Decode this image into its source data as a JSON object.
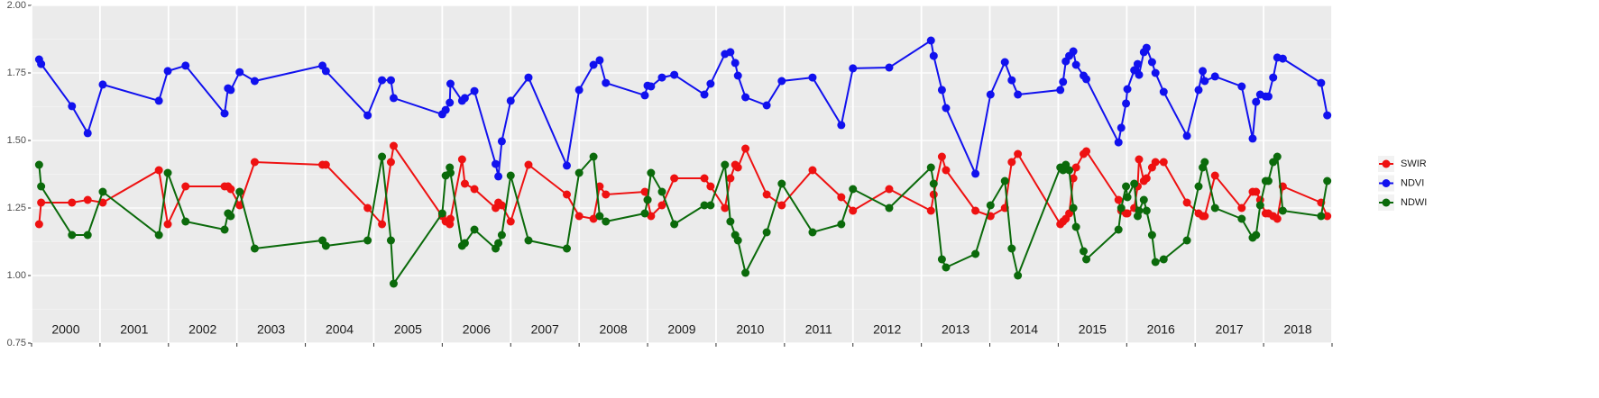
{
  "chart_data": {
    "type": "line",
    "x": [
      2000.11,
      2000.14,
      2000.59,
      2000.82,
      2001.04,
      2001.86,
      2001.99,
      2002.25,
      2002.82,
      2002.87,
      2002.91,
      2003.04,
      2003.26,
      2004.25,
      2004.3,
      2004.91,
      2005.12,
      2005.25,
      2005.29,
      2006.0,
      2006.05,
      2006.11,
      2006.12,
      2006.29,
      2006.33,
      2006.47,
      2006.78,
      2006.82,
      2006.87,
      2007.0,
      2007.26,
      2007.82,
      2008.0,
      2008.21,
      2008.3,
      2008.39,
      2008.96,
      2009.0,
      2009.05,
      2009.21,
      2009.39,
      2009.83,
      2009.92,
      2010.13,
      2010.21,
      2010.28,
      2010.32,
      2010.43,
      2010.74,
      2010.96,
      2011.41,
      2011.83,
      2012.0,
      2012.53,
      2013.14,
      2013.18,
      2013.3,
      2013.36,
      2013.79,
      2014.01,
      2014.22,
      2014.32,
      2014.41,
      2015.03,
      2015.07,
      2015.11,
      2015.16,
      2015.22,
      2015.26,
      2015.37,
      2015.41,
      2015.88,
      2015.92,
      2015.99,
      2016.01,
      2016.11,
      2016.16,
      2016.18,
      2016.25,
      2016.29,
      2016.37,
      2016.42,
      2016.54,
      2016.88,
      2017.05,
      2017.11,
      2017.14,
      2017.29,
      2017.68,
      2017.84,
      2017.89,
      2017.95,
      2018.03,
      2018.07,
      2018.14,
      2018.2,
      2018.28,
      2018.84,
      2018.93
    ],
    "series": [
      {
        "name": "SWIR",
        "color": "#ee1111",
        "values": [
          1.19,
          1.27,
          1.27,
          1.28,
          1.27,
          1.39,
          1.19,
          1.33,
          1.33,
          1.33,
          1.32,
          1.26,
          1.42,
          1.41,
          1.41,
          1.25,
          1.19,
          1.42,
          1.48,
          1.22,
          1.2,
          1.19,
          1.21,
          1.43,
          1.34,
          1.32,
          1.25,
          1.27,
          1.26,
          1.2,
          1.41,
          1.3,
          1.22,
          1.21,
          1.33,
          1.3,
          1.31,
          1.28,
          1.22,
          1.26,
          1.36,
          1.36,
          1.33,
          1.25,
          1.36,
          1.41,
          1.4,
          1.47,
          1.3,
          1.26,
          1.39,
          1.29,
          1.24,
          1.32,
          1.24,
          1.3,
          1.44,
          1.39,
          1.24,
          1.22,
          1.25,
          1.42,
          1.45,
          1.19,
          1.2,
          1.21,
          1.23,
          1.36,
          1.4,
          1.45,
          1.46,
          1.28,
          1.24,
          1.23,
          1.23,
          1.25,
          1.33,
          1.43,
          1.35,
          1.36,
          1.4,
          1.42,
          1.42,
          1.27,
          1.23,
          1.22,
          1.22,
          1.37,
          1.25,
          1.31,
          1.31,
          1.28,
          1.23,
          1.23,
          1.22,
          1.21,
          1.33,
          1.27,
          1.22
        ]
      },
      {
        "name": "NDVI",
        "color": "#1111ee",
        "values": [
          1.8,
          1.783,
          1.627,
          1.527,
          1.707,
          1.647,
          1.757,
          1.777,
          1.6,
          1.693,
          1.687,
          1.753,
          1.72,
          1.777,
          1.757,
          1.593,
          1.723,
          1.723,
          1.657,
          1.597,
          1.613,
          1.64,
          1.71,
          1.647,
          1.657,
          1.683,
          1.413,
          1.367,
          1.497,
          1.647,
          1.733,
          1.407,
          1.687,
          1.78,
          1.797,
          1.713,
          1.667,
          1.703,
          1.7,
          1.733,
          1.743,
          1.67,
          1.71,
          1.82,
          1.827,
          1.787,
          1.74,
          1.66,
          1.63,
          1.72,
          1.733,
          1.557,
          1.767,
          1.77,
          1.87,
          1.813,
          1.687,
          1.62,
          1.377,
          1.67,
          1.79,
          1.723,
          1.67,
          1.687,
          1.717,
          1.793,
          1.813,
          1.83,
          1.78,
          1.74,
          1.727,
          1.493,
          1.547,
          1.637,
          1.69,
          1.76,
          1.783,
          1.743,
          1.827,
          1.843,
          1.79,
          1.75,
          1.68,
          1.517,
          1.687,
          1.757,
          1.72,
          1.737,
          1.7,
          1.507,
          1.643,
          1.67,
          1.663,
          1.663,
          1.733,
          1.807,
          1.803,
          1.713,
          1.593
        ]
      },
      {
        "name": "NDWI",
        "color": "#0b6a0b",
        "values": [
          1.41,
          1.33,
          1.15,
          1.15,
          1.31,
          1.15,
          1.38,
          1.2,
          1.17,
          1.23,
          1.22,
          1.31,
          1.1,
          1.13,
          1.11,
          1.13,
          1.44,
          1.13,
          0.97,
          1.23,
          1.37,
          1.4,
          1.38,
          1.11,
          1.12,
          1.17,
          1.1,
          1.12,
          1.15,
          1.37,
          1.13,
          1.1,
          1.38,
          1.44,
          1.22,
          1.2,
          1.23,
          1.28,
          1.38,
          1.31,
          1.19,
          1.26,
          1.26,
          1.41,
          1.2,
          1.15,
          1.13,
          1.01,
          1.16,
          1.34,
          1.16,
          1.19,
          1.32,
          1.25,
          1.4,
          1.34,
          1.06,
          1.03,
          1.08,
          1.26,
          1.35,
          1.1,
          1.0,
          1.4,
          1.39,
          1.41,
          1.39,
          1.25,
          1.18,
          1.09,
          1.06,
          1.17,
          1.25,
          1.33,
          1.29,
          1.34,
          1.22,
          1.24,
          1.28,
          1.24,
          1.15,
          1.05,
          1.06,
          1.13,
          1.33,
          1.4,
          1.42,
          1.25,
          1.21,
          1.14,
          1.15,
          1.26,
          1.35,
          1.35,
          1.42,
          1.44,
          1.24,
          1.22,
          1.35
        ]
      }
    ],
    "year_labels": [
      "2000",
      "2001",
      "2002",
      "2003",
      "2004",
      "2005",
      "2006",
      "2007",
      "2008",
      "2009",
      "2010",
      "2011",
      "2012",
      "2013",
      "2014",
      "2015",
      "2016",
      "2017",
      "2018"
    ],
    "xlim": [
      2000,
      2019
    ],
    "xticks": [
      2000,
      2001,
      2002,
      2003,
      2004,
      2005,
      2006,
      2007,
      2008,
      2009,
      2010,
      2011,
      2012,
      2013,
      2014,
      2015,
      2016,
      2017,
      2018,
      2019
    ],
    "ylim": [
      0.75,
      2
    ],
    "yticks": [
      0.75,
      {
        "value": 1,
        "label": "1.00"
      },
      1.25,
      {
        "value": 1.5,
        "label": "1.50"
      },
      1.75,
      {
        "value": 2,
        "label": "2.00"
      }
    ],
    "grid": true,
    "legend": "right"
  }
}
